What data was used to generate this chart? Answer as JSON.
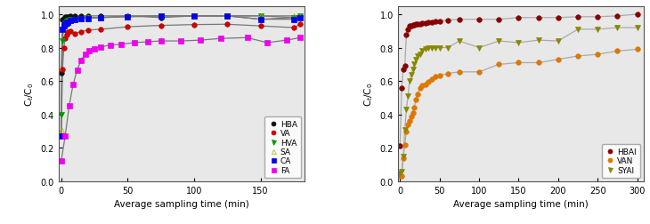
{
  "chart1": {
    "xlabel": "Average sampling time (min)",
    "ylabel": "C$_t$/C$_0$",
    "xlim": [
      -2,
      183
    ],
    "ylim": [
      0.0,
      1.05
    ],
    "yticks": [
      0.0,
      0.2,
      0.4,
      0.6,
      0.8,
      1.0
    ],
    "xticks": [
      0,
      50,
      100,
      150
    ],
    "series": {
      "HBA": {
        "color": "#111111",
        "line_color": "#777777",
        "marker": "o",
        "x": [
          0,
          1,
          2,
          3,
          4,
          5,
          7,
          10,
          15,
          20,
          30,
          50,
          75,
          100,
          125,
          150,
          175,
          180
        ],
        "y": [
          0.65,
          0.97,
          0.975,
          0.985,
          0.985,
          0.985,
          0.99,
          0.99,
          0.99,
          0.99,
          0.99,
          0.99,
          0.98,
          0.99,
          0.99,
          0.97,
          0.98,
          0.99
        ]
      },
      "VA": {
        "color": "#cc0000",
        "line_color": "#777777",
        "marker": "o",
        "x": [
          0,
          1,
          2,
          3,
          4,
          5,
          7,
          10,
          15,
          20,
          30,
          50,
          75,
          100,
          125,
          150,
          175,
          180
        ],
        "y": [
          0.27,
          0.67,
          0.8,
          0.855,
          0.875,
          0.895,
          0.9,
          0.885,
          0.895,
          0.905,
          0.91,
          0.925,
          0.933,
          0.938,
          0.94,
          0.93,
          0.92,
          0.94
        ]
      },
      "HVA": {
        "color": "#009900",
        "line_color": "#777777",
        "marker": "v",
        "x": [
          0,
          1,
          2,
          3,
          4,
          5,
          7,
          10,
          15,
          20,
          30,
          50,
          75,
          100,
          125,
          150,
          175,
          180
        ],
        "y": [
          0.4,
          0.84,
          0.92,
          0.945,
          0.955,
          0.965,
          0.97,
          0.97,
          0.975,
          0.98,
          0.98,
          0.985,
          0.99,
          0.99,
          0.99,
          0.99,
          0.98,
          0.99
        ]
      },
      "SA": {
        "color": "#aaaa00",
        "line_color": "#777777",
        "marker": "^",
        "marker_face": "none",
        "x": [
          0,
          1,
          2,
          3,
          4,
          5,
          7,
          10,
          15,
          20,
          30,
          50,
          75,
          100,
          125,
          150,
          175,
          180
        ],
        "y": [
          0.31,
          0.91,
          0.93,
          0.945,
          0.955,
          0.96,
          0.965,
          0.97,
          0.975,
          0.98,
          0.98,
          0.99,
          0.99,
          0.99,
          0.99,
          0.99,
          0.99,
          0.99
        ]
      },
      "CA": {
        "color": "#0000ee",
        "line_color": "#777777",
        "marker": "s",
        "x": [
          0,
          1,
          2,
          3,
          4,
          5,
          7,
          10,
          15,
          20,
          30,
          50,
          75,
          100,
          125,
          150,
          175,
          180
        ],
        "y": [
          0.27,
          0.91,
          0.93,
          0.94,
          0.945,
          0.95,
          0.965,
          0.97,
          0.975,
          0.975,
          0.98,
          0.985,
          0.99,
          0.99,
          0.99,
          0.97,
          0.97,
          0.98
        ]
      },
      "FA": {
        "color": "#ee00ee",
        "line_color": "#777777",
        "marker": "s",
        "x": [
          0,
          3,
          6,
          9,
          12,
          15,
          18,
          21,
          25,
          30,
          37,
          45,
          55,
          65,
          75,
          90,
          105,
          120,
          140,
          155,
          170,
          180
        ],
        "y": [
          0.12,
          0.27,
          0.45,
          0.58,
          0.665,
          0.725,
          0.76,
          0.78,
          0.795,
          0.805,
          0.815,
          0.82,
          0.83,
          0.835,
          0.84,
          0.84,
          0.845,
          0.855,
          0.86,
          0.83,
          0.845,
          0.86
        ]
      }
    }
  },
  "chart2": {
    "xlabel": "Average sampling time (min)",
    "ylabel": "C$_t$/C$_0$",
    "xlim": [
      -3,
      308
    ],
    "ylim": [
      0.0,
      1.05
    ],
    "yticks": [
      0.0,
      0.2,
      0.4,
      0.6,
      0.8,
      1.0
    ],
    "xticks": [
      0,
      50,
      100,
      150,
      200,
      250,
      300
    ],
    "series": {
      "HBAI": {
        "color": "#880000",
        "line_color": "#aaaaaa",
        "marker": "o",
        "x": [
          0,
          2,
          4,
          6,
          8,
          10,
          12,
          14,
          16,
          18,
          20,
          22,
          25,
          28,
          32,
          36,
          40,
          45,
          50,
          60,
          75,
          100,
          125,
          150,
          175,
          200,
          225,
          250,
          275,
          300
        ],
        "y": [
          0.21,
          0.56,
          0.67,
          0.69,
          0.88,
          0.91,
          0.93,
          0.93,
          0.935,
          0.935,
          0.94,
          0.94,
          0.94,
          0.945,
          0.945,
          0.95,
          0.95,
          0.96,
          0.96,
          0.965,
          0.97,
          0.97,
          0.97,
          0.98,
          0.98,
          0.98,
          0.985,
          0.985,
          0.99,
          1.0
        ]
      },
      "VAN": {
        "color": "#dd7700",
        "line_color": "#aaaaaa",
        "marker": "o",
        "x": [
          0,
          2,
          4,
          6,
          8,
          10,
          12,
          14,
          16,
          18,
          20,
          22,
          25,
          28,
          32,
          36,
          40,
          45,
          50,
          60,
          75,
          100,
          125,
          150,
          175,
          200,
          225,
          250,
          275,
          300
        ],
        "y": [
          0.03,
          0.03,
          0.14,
          0.22,
          0.3,
          0.34,
          0.36,
          0.39,
          0.41,
          0.44,
          0.49,
          0.52,
          0.56,
          0.575,
          0.58,
          0.595,
          0.61,
          0.625,
          0.635,
          0.645,
          0.655,
          0.655,
          0.7,
          0.71,
          0.71,
          0.73,
          0.75,
          0.76,
          0.78,
          0.79
        ]
      },
      "SYAI": {
        "color": "#888800",
        "line_color": "#aaaaaa",
        "marker": "v",
        "x": [
          0,
          2,
          4,
          6,
          8,
          10,
          12,
          14,
          16,
          18,
          20,
          22,
          25,
          28,
          32,
          36,
          40,
          45,
          50,
          60,
          75,
          100,
          125,
          150,
          175,
          200,
          225,
          250,
          275,
          300
        ],
        "y": [
          0.05,
          0.06,
          0.15,
          0.31,
          0.43,
          0.51,
          0.6,
          0.64,
          0.67,
          0.7,
          0.73,
          0.75,
          0.76,
          0.78,
          0.795,
          0.8,
          0.8,
          0.8,
          0.8,
          0.8,
          0.84,
          0.8,
          0.84,
          0.83,
          0.845,
          0.84,
          0.91,
          0.91,
          0.92,
          0.92
        ]
      }
    }
  },
  "bg_color": "#e8e8e8",
  "line_color_default": "#888888"
}
